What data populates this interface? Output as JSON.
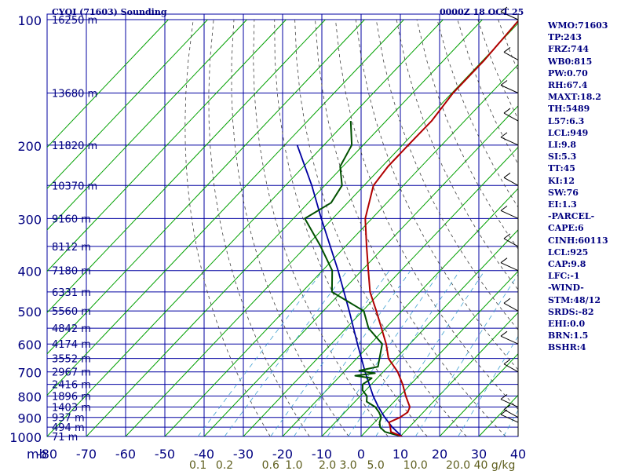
{
  "header": {
    "station_title": "CYQI (71603) Sounding",
    "time_title": "0000Z 18 OCT 25"
  },
  "indices": [
    "WMO:71603",
    "TP:243",
    "FRZ:744",
    "WB0:815",
    "PW:0.70",
    "RH:67.4",
    "MAXT:18.2",
    "TH:5489",
    "L57:6.3",
    "LCL:949",
    "LI:9.8",
    "SI:5.3",
    "TT:45",
    "KI:12",
    "SW:76",
    "EI:1.3",
    "-PARCEL-",
    "CAPE:6",
    "CINH:60113",
    "LCL:925",
    "CAP:9.8",
    "LFC:-1",
    "-WIND-",
    "STM:48/12",
    "SRDS:-82",
    "EHI:0.0",
    "BRN:1.5",
    "BSHR:4"
  ],
  "colors": {
    "grid": "#0000a0",
    "isotherm": "#00a000",
    "temperature": "#b00000",
    "dewpoint": "#005000",
    "parcel": "#0000a0",
    "dry_adiabat": "#404040",
    "mixing_ratio": "#40a0d0",
    "label_blue": "#000080",
    "mixing_label": "#606020"
  },
  "chart_data": {
    "type": "skew-t",
    "x_axis": {
      "unit_label": "mb",
      "ticks": [
        -80,
        -70,
        -60,
        -50,
        -40,
        -30,
        -20,
        -10,
        0,
        10,
        20,
        30,
        40
      ],
      "tick_labels": [
        "-80",
        "-70",
        "-60",
        "-50",
        "-40",
        "-30",
        "-20",
        "-10",
        "0",
        "10",
        "20",
        "30",
        "40"
      ],
      "range": [
        -80,
        40
      ]
    },
    "y_axis": {
      "pressure_levels": [
        100,
        200,
        300,
        400,
        500,
        600,
        700,
        800,
        900,
        1000
      ],
      "range": [
        100,
        1000
      ],
      "scale": "log"
    },
    "height_labels": [
      {
        "p": 100,
        "text": "16250 m"
      },
      {
        "p": 150,
        "text": "13680 m"
      },
      {
        "p": 200,
        "text": "11820 m"
      },
      {
        "p": 250,
        "text": "10370 m"
      },
      {
        "p": 300,
        "text": "9160 m"
      },
      {
        "p": 350,
        "text": "8112 m"
      },
      {
        "p": 400,
        "text": "7180 m"
      },
      {
        "p": 450,
        "text": "6331 m"
      },
      {
        "p": 500,
        "text": "5560 m"
      },
      {
        "p": 550,
        "text": "4842 m"
      },
      {
        "p": 600,
        "text": "4174 m"
      },
      {
        "p": 650,
        "text": "3552 m"
      },
      {
        "p": 700,
        "text": "2967 m"
      },
      {
        "p": 750,
        "text": "2416 m"
      },
      {
        "p": 800,
        "text": "1896 m"
      },
      {
        "p": 850,
        "text": "1403 m"
      },
      {
        "p": 900,
        "text": "937 m"
      },
      {
        "p": 950,
        "text": "494 m"
      },
      {
        "p": 1000,
        "text": "71 m"
      }
    ],
    "mixing_ratio_labels": [
      "0.1",
      "0.2",
      "0.6",
      "1.0",
      "2.0",
      "3.0",
      "5.0",
      "10.0",
      "20.0",
      "40 g/kg"
    ],
    "temperature_profile": [
      {
        "p": 1000,
        "t": 10.4
      },
      {
        "p": 975,
        "t": 6.5
      },
      {
        "p": 950,
        "t": 5.2
      },
      {
        "p": 925,
        "t": 3.7
      },
      {
        "p": 900,
        "t": 5.3
      },
      {
        "p": 875,
        "t": 6.0
      },
      {
        "p": 850,
        "t": 5.3
      },
      {
        "p": 800,
        "t": 1.6
      },
      {
        "p": 750,
        "t": -2.0
      },
      {
        "p": 700,
        "t": -6.3
      },
      {
        "p": 650,
        "t": -11.9
      },
      {
        "p": 600,
        "t": -16.0
      },
      {
        "p": 550,
        "t": -21.0
      },
      {
        "p": 500,
        "t": -26.5
      },
      {
        "p": 450,
        "t": -32.7
      },
      {
        "p": 400,
        "t": -38.3
      },
      {
        "p": 350,
        "t": -44.6
      },
      {
        "p": 300,
        "t": -51.7
      },
      {
        "p": 250,
        "t": -57.6
      },
      {
        "p": 225,
        "t": -58.5
      },
      {
        "p": 200,
        "t": -58.5
      },
      {
        "p": 175,
        "t": -58.4
      },
      {
        "p": 150,
        "t": -59.7
      },
      {
        "p": 125,
        "t": -59.7
      },
      {
        "p": 100,
        "t": -60.6
      }
    ],
    "dewpoint_profile": [
      {
        "p": 1000,
        "td": 10.4
      },
      {
        "p": 975,
        "td": 5.0
      },
      {
        "p": 950,
        "td": 2.6
      },
      {
        "p": 925,
        "td": 1.3
      },
      {
        "p": 900,
        "td": 0.5
      },
      {
        "p": 875,
        "td": -1.3
      },
      {
        "p": 850,
        "td": -3.5
      },
      {
        "p": 825,
        "td": -7.0
      },
      {
        "p": 800,
        "td": -8.3
      },
      {
        "p": 775,
        "td": -10.8
      },
      {
        "p": 750,
        "td": -12.2
      },
      {
        "p": 725,
        "td": -11.4
      },
      {
        "p": 715,
        "td": -16.2
      },
      {
        "p": 705,
        "td": -11.8
      },
      {
        "p": 695,
        "td": -16.4
      },
      {
        "p": 680,
        "td": -12.6
      },
      {
        "p": 650,
        "td": -14.2
      },
      {
        "p": 600,
        "td": -17.0
      },
      {
        "p": 550,
        "td": -24.3
      },
      {
        "p": 500,
        "td": -29.7
      },
      {
        "p": 450,
        "td": -42.4
      },
      {
        "p": 400,
        "td": -47.5
      },
      {
        "p": 350,
        "td": -56.3
      },
      {
        "p": 300,
        "td": -67.1
      },
      {
        "p": 275,
        "td": -64.2
      },
      {
        "p": 250,
        "td": -65.6
      },
      {
        "p": 225,
        "td": -70.7
      },
      {
        "p": 200,
        "td": -72.9
      },
      {
        "p": 175,
        "td": -79.0
      }
    ],
    "parcel_path": [
      {
        "p": 1000,
        "t": 10.4
      },
      {
        "p": 950,
        "t": 5.7
      },
      {
        "p": 900,
        "t": 1.4
      },
      {
        "p": 850,
        "t": -2.7
      },
      {
        "p": 800,
        "t": -6.7
      },
      {
        "p": 700,
        "t": -14.6
      },
      {
        "p": 600,
        "t": -23.3
      },
      {
        "p": 500,
        "t": -33.4
      },
      {
        "p": 400,
        "t": -46.0
      },
      {
        "p": 300,
        "t": -62.9
      },
      {
        "p": 250,
        "t": -73.3
      },
      {
        "p": 200,
        "t": -86.8
      }
    ]
  }
}
